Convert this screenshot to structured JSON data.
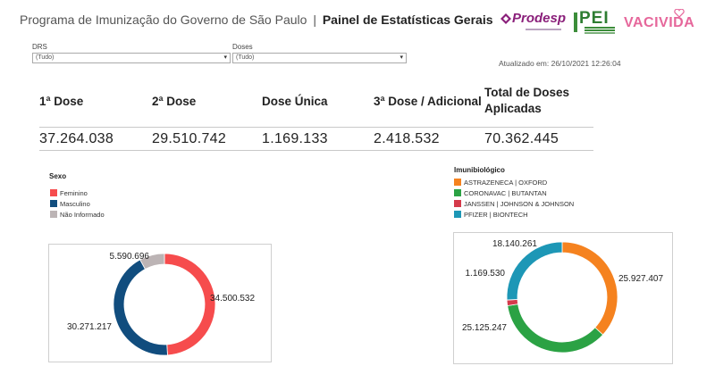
{
  "header": {
    "title_regular": "Programa de Imunização do Governo de São Paulo",
    "separator": "|",
    "title_bold": "Painel de Estatísticas Gerais"
  },
  "logos": {
    "prodesp": "Prodesp",
    "pei": "PEI",
    "vacivida": "VACIVIDA"
  },
  "filters": {
    "drs": {
      "label": "DRS",
      "value": "(Tudo)"
    },
    "doses": {
      "label": "Doses",
      "value": "(Tudo)"
    }
  },
  "updated": "Atualizado em: 26/10/2021 12:26:04",
  "kpis": {
    "headers": [
      "1ª Dose",
      "2ª Dose",
      "Dose Única",
      "3ª Dose / Adicional",
      "Total de Doses Aplicadas"
    ],
    "values": [
      "37.264.038",
      "29.510.742",
      "1.169.133",
      "2.418.532",
      "70.362.445"
    ]
  },
  "colors": {
    "feminino": "#f64c4d",
    "masculino": "#114d7e",
    "nao_informado": "#bcb4b5",
    "astrazeneca": "#f5821f",
    "coronavac": "#2ba244",
    "janssen": "#d53a4b",
    "pfizer": "#1d97b6"
  },
  "chart_data": [
    {
      "type": "pie",
      "legend_title": "Sexo",
      "categories": [
        "Feminino",
        "Masculino",
        "Não Informado"
      ],
      "values": [
        34500532,
        30271217,
        5590696
      ],
      "labels": [
        "34.500.532",
        "30.271.217",
        "5.590.696"
      ],
      "donut": true,
      "legend_position": "top-left"
    },
    {
      "type": "pie",
      "legend_title": "Imunibiológico",
      "categories": [
        "ASTRAZENECA | OXFORD",
        "CORONAVAC | BUTANTAN",
        "JANSSEN | JOHNSON & JOHNSON",
        "PFIZER | BIONTECH"
      ],
      "values": [
        25927407,
        25125247,
        1169530,
        18140261
      ],
      "labels": [
        "25.927.407",
        "25.125.247",
        "1.169.530",
        "18.140.261"
      ],
      "donut": true,
      "legend_position": "top-left"
    }
  ]
}
